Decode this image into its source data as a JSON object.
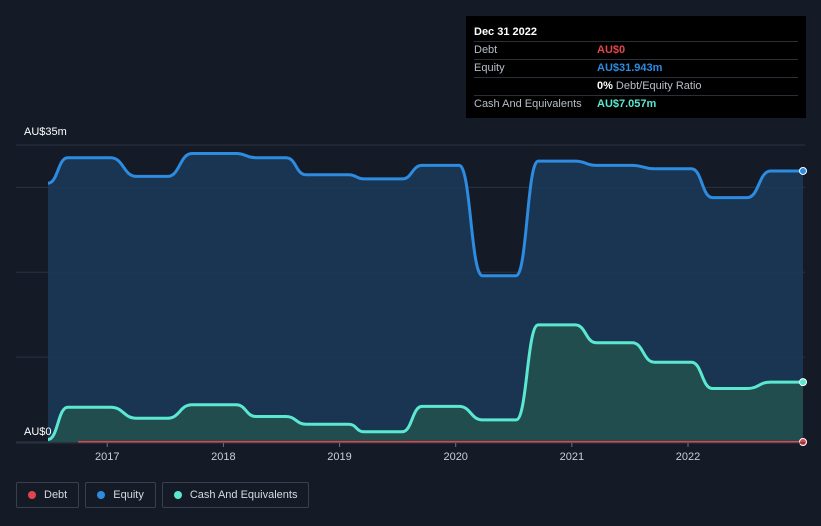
{
  "chart_data": {
    "type": "area",
    "currency_unit": "AU$m",
    "y_top_label": "AU$35m",
    "y_bottom_label": "AU$0",
    "ylim": [
      0,
      35
    ],
    "xlim": [
      2016.49,
      2022.99
    ],
    "x_ticks": [
      {
        "value": 2017,
        "label": "2017"
      },
      {
        "value": 2018,
        "label": "2018"
      },
      {
        "value": 2019,
        "label": "2019"
      },
      {
        "value": 2020,
        "label": "2020"
      },
      {
        "value": 2021,
        "label": "2021"
      },
      {
        "value": 2022,
        "label": "2022"
      }
    ],
    "series": [
      {
        "name": "Equity",
        "color": "#2d8be0",
        "x": [
          2016.49,
          2016.66,
          2017.03,
          2017.25,
          2017.52,
          2017.73,
          2018.11,
          2018.28,
          2018.54,
          2018.71,
          2019.08,
          2019.21,
          2019.54,
          2019.71,
          2020.03,
          2020.23,
          2020.52,
          2020.71,
          2021.03,
          2021.21,
          2021.52,
          2021.71,
          2022.03,
          2022.21,
          2022.51,
          2022.71,
          2022.99
        ],
        "values": [
          30.5,
          33.5,
          33.5,
          31.3,
          31.3,
          34.0,
          34.0,
          33.5,
          33.5,
          31.5,
          31.5,
          31.0,
          31.0,
          32.6,
          32.6,
          19.6,
          19.6,
          33.1,
          33.1,
          32.6,
          32.6,
          32.2,
          32.2,
          28.8,
          28.8,
          31.94,
          31.94
        ]
      },
      {
        "name": "Cash And Equivalents",
        "color": "#5ce8d0",
        "x": [
          2016.49,
          2016.66,
          2017.03,
          2017.25,
          2017.52,
          2017.73,
          2018.11,
          2018.28,
          2018.54,
          2018.71,
          2019.08,
          2019.21,
          2019.54,
          2019.71,
          2020.03,
          2020.23,
          2020.52,
          2020.71,
          2021.03,
          2021.21,
          2021.52,
          2021.71,
          2022.03,
          2022.21,
          2022.51,
          2022.71,
          2022.99
        ],
        "values": [
          0.3,
          4.1,
          4.1,
          2.8,
          2.8,
          4.4,
          4.4,
          3.0,
          3.0,
          2.1,
          2.1,
          1.2,
          1.2,
          4.2,
          4.2,
          2.6,
          2.6,
          13.8,
          13.8,
          11.7,
          11.7,
          9.4,
          9.4,
          6.3,
          6.3,
          7.057,
          7.057
        ]
      },
      {
        "name": "Debt",
        "color": "#e0474c",
        "x": [
          2016.75,
          2022.99
        ],
        "values": [
          0,
          0
        ]
      }
    ],
    "tooltip": {
      "date": "Dec 31 2022",
      "debt_label": "Debt",
      "debt_value": "AU$0",
      "equity_label": "Equity",
      "equity_value": "AU$31.943m",
      "ratio_value": "0%",
      "ratio_label": "Debt/Equity Ratio",
      "cash_label": "Cash And Equivalents",
      "cash_value": "AU$7.057m"
    },
    "legend": [
      {
        "name": "Debt",
        "color": "#e0474c"
      },
      {
        "name": "Equity",
        "color": "#2d8be0"
      },
      {
        "name": "Cash And Equivalents",
        "color": "#5ce8d0"
      }
    ]
  }
}
